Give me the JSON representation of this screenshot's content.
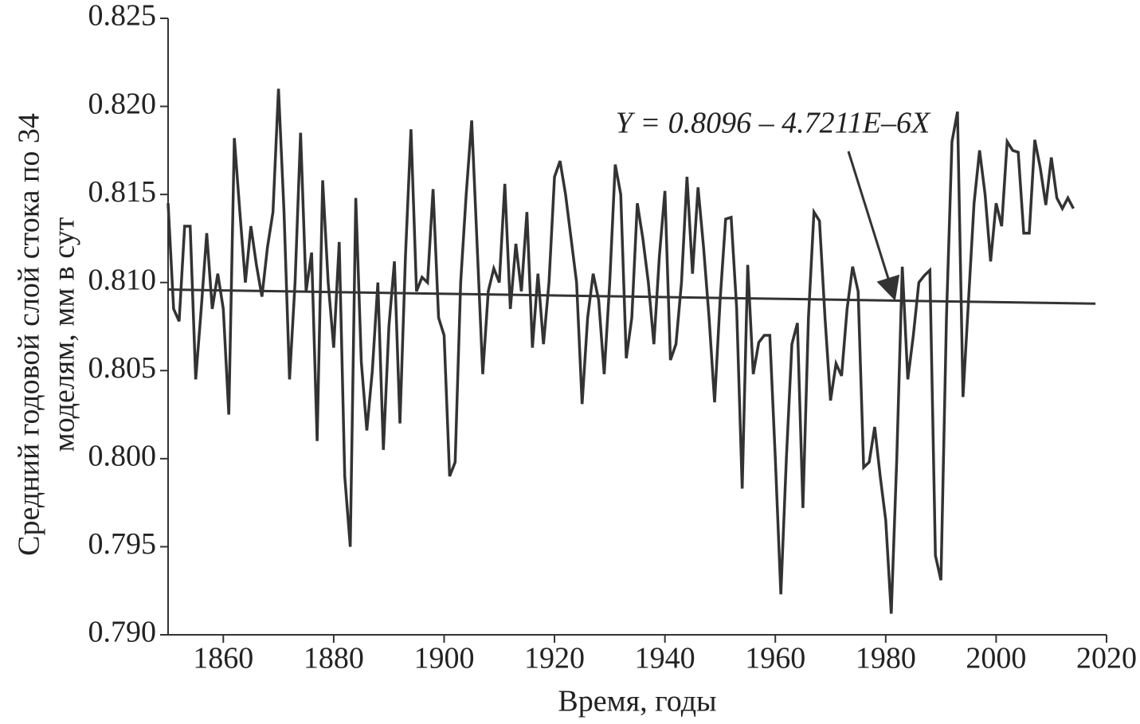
{
  "chart_data": {
    "type": "line",
    "ylabel": [
      "Средний годовой слой стока по 34",
      "моделям,  мм в сут"
    ],
    "xlabel": "Время, годы",
    "annotation": "Y = 0.8096 – 4.7211E–6X",
    "x": [
      1850,
      1851,
      1852,
      1853,
      1854,
      1855,
      1856,
      1857,
      1858,
      1859,
      1860,
      1861,
      1862,
      1863,
      1864,
      1865,
      1866,
      1867,
      1868,
      1869,
      1870,
      1871,
      1872,
      1873,
      1874,
      1875,
      1876,
      1877,
      1878,
      1879,
      1880,
      1881,
      1882,
      1883,
      1884,
      1885,
      1886,
      1887,
      1888,
      1889,
      1890,
      1891,
      1892,
      1893,
      1894,
      1895,
      1896,
      1897,
      1898,
      1899,
      1900,
      1901,
      1902,
      1903,
      1904,
      1905,
      1906,
      1907,
      1908,
      1909,
      1910,
      1911,
      1912,
      1913,
      1914,
      1915,
      1916,
      1917,
      1918,
      1919,
      1920,
      1921,
      1922,
      1923,
      1924,
      1925,
      1926,
      1927,
      1928,
      1929,
      1930,
      1931,
      1932,
      1933,
      1934,
      1935,
      1936,
      1937,
      1938,
      1939,
      1940,
      1941,
      1942,
      1943,
      1944,
      1945,
      1946,
      1947,
      1948,
      1949,
      1950,
      1951,
      1952,
      1953,
      1954,
      1955,
      1956,
      1957,
      1958,
      1959,
      1960,
      1961,
      1962,
      1963,
      1964,
      1965,
      1966,
      1967,
      1968,
      1969,
      1970,
      1971,
      1972,
      1973,
      1974,
      1975,
      1976,
      1977,
      1978,
      1979,
      1980,
      1981,
      1982,
      1983,
      1984,
      1985,
      1986,
      1987,
      1988,
      1989,
      1990,
      1991,
      1992,
      1993,
      1994,
      1995,
      1996,
      1997,
      1998,
      1999,
      2000,
      2001,
      2002,
      2003,
      2004,
      2005,
      2006,
      2007,
      2008,
      2009,
      2010,
      2011,
      2012,
      2013,
      2014
    ],
    "series": [
      {
        "color": "#333333",
        "values": [
          0.8145,
          0.8085,
          0.8078,
          0.8132,
          0.8132,
          0.8045,
          0.8085,
          0.8128,
          0.8085,
          0.8105,
          0.8085,
          0.8025,
          0.8182,
          0.814,
          0.81,
          0.8132,
          0.811,
          0.8092,
          0.812,
          0.814,
          0.821,
          0.814,
          0.8045,
          0.81,
          0.8185,
          0.8095,
          0.8117,
          0.801,
          0.8158,
          0.81,
          0.8063,
          0.8123,
          0.799,
          0.795,
          0.8148,
          0.8055,
          0.8016,
          0.805,
          0.81,
          0.8005,
          0.8075,
          0.8112,
          0.802,
          0.8115,
          0.8187,
          0.8095,
          0.8103,
          0.81,
          0.8153,
          0.808,
          0.807,
          0.799,
          0.7998,
          0.81,
          0.815,
          0.8192,
          0.812,
          0.8048,
          0.8095,
          0.8108,
          0.81,
          0.8156,
          0.8085,
          0.8122,
          0.8095,
          0.814,
          0.8063,
          0.8105,
          0.8065,
          0.81,
          0.816,
          0.8169,
          0.815,
          0.8125,
          0.81,
          0.8031,
          0.808,
          0.8105,
          0.809,
          0.8048,
          0.81,
          0.8167,
          0.815,
          0.8057,
          0.808,
          0.8145,
          0.8125,
          0.81,
          0.8065,
          0.8115,
          0.8152,
          0.8056,
          0.8065,
          0.81,
          0.816,
          0.8105,
          0.8154,
          0.812,
          0.808,
          0.8032,
          0.809,
          0.8136,
          0.8137,
          0.8085,
          0.7983,
          0.811,
          0.8048,
          0.8066,
          0.807,
          0.807,
          0.8,
          0.7923,
          0.8,
          0.8065,
          0.8077,
          0.7972,
          0.808,
          0.814,
          0.8135,
          0.808,
          0.8033,
          0.8054,
          0.8047,
          0.8085,
          0.8109,
          0.8095,
          0.7995,
          0.7998,
          0.8018,
          0.799,
          0.7965,
          0.7912,
          0.8,
          0.8109,
          0.8045,
          0.807,
          0.81,
          0.8104,
          0.8107,
          0.7945,
          0.7931,
          0.808,
          0.818,
          0.8197,
          0.8035,
          0.809,
          0.8145,
          0.8175,
          0.815,
          0.8112,
          0.8145,
          0.8132,
          0.818,
          0.8175,
          0.8174,
          0.8128,
          0.8128,
          0.8181,
          0.8165,
          0.8144,
          0.8171,
          0.8148,
          0.8142,
          0.8148,
          0.8142
        ]
      }
    ],
    "trend": {
      "x": [
        1850,
        2018
      ],
      "values": [
        0.8096,
        0.8088
      ]
    },
    "xlim": [
      1850,
      2020
    ],
    "xticks": [
      1860,
      1880,
      1900,
      1920,
      1940,
      1960,
      1980,
      2000,
      2020
    ],
    "ylim": [
      0.79,
      0.825
    ],
    "yticks": [
      {
        "value": 0.79,
        "label": "0.790"
      },
      0.795,
      {
        "value": 0.8,
        "label": "0.800"
      },
      0.805,
      {
        "value": 0.81,
        "label": "0.810"
      },
      0.815,
      {
        "value": 0.82,
        "label": "0.820"
      },
      0.825
    ]
  }
}
